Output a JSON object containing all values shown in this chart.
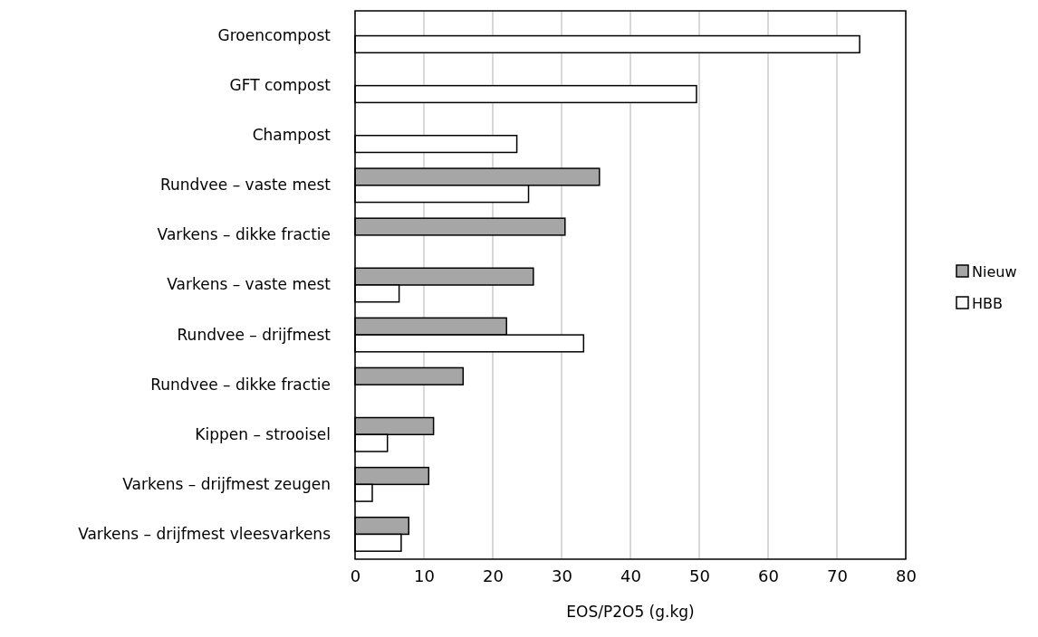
{
  "chart_data": {
    "type": "bar",
    "orientation": "horizontal",
    "xlabel": "EOS/P2O5 (g.kg)",
    "categories": [
      "Groencompost",
      "GFT compost",
      "Champost",
      "Rundvee – vaste mest",
      "Varkens – dikke fractie",
      "Varkens – vaste mest",
      "Rundvee – drijfmest",
      "Rundvee – dikke fractie",
      "Kippen – strooisel",
      "Varkens – drijfmest zeugen",
      "Varkens – drijfmest vleesvarkens"
    ],
    "series": [
      {
        "name": "Nieuw",
        "color": "#a6a6a6",
        "values": [
          null,
          null,
          null,
          35.5,
          30.5,
          25.9,
          22.0,
          15.7,
          11.4,
          10.7,
          7.8
        ]
      },
      {
        "name": "HBB",
        "color": "#ffffff",
        "values": [
          73.3,
          49.6,
          23.5,
          25.2,
          null,
          6.4,
          33.2,
          null,
          4.7,
          2.5,
          6.7
        ]
      }
    ],
    "xlim": [
      0,
      80
    ],
    "xticks": [
      0,
      10,
      20,
      30,
      40,
      50,
      60,
      70,
      80
    ],
    "grid": "x",
    "legend": "right"
  }
}
